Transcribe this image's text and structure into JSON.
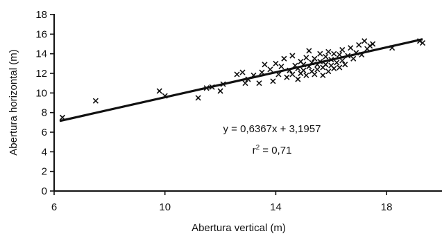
{
  "chart_data": {
    "type": "scatter",
    "title": "",
    "xlabel": "Abertura vertical (m)",
    "ylabel": "Abertura horizontal (m)",
    "xlim": [
      6,
      20
    ],
    "ylim": [
      0,
      18
    ],
    "xticks": [
      "6",
      "10",
      "14",
      "18"
    ],
    "xtick_values": [
      6,
      10,
      14,
      18
    ],
    "yticks": [
      "0",
      "2",
      "4",
      "6",
      "8",
      "10",
      "12",
      "14",
      "16",
      "18"
    ],
    "ytick_values": [
      0,
      2,
      4,
      6,
      8,
      10,
      12,
      14,
      16,
      18
    ],
    "grid": false,
    "legend": "none",
    "marker": "x",
    "trendline": {
      "slope": 0.6367,
      "intercept": 3.1957,
      "x_range": [
        6.2,
        19.3
      ]
    },
    "annotations": {
      "equation": "y = 0,6367x + 3,1957",
      "r2_prefix": "r",
      "r2_exp": "2",
      "r2_value": " = 0,71"
    },
    "points": [
      [
        6.3,
        7.5
      ],
      [
        7.5,
        9.2
      ],
      [
        9.8,
        10.2
      ],
      [
        10.0,
        9.7
      ],
      [
        11.2,
        9.5
      ],
      [
        11.5,
        10.5
      ],
      [
        11.7,
        10.6
      ],
      [
        12.0,
        10.2
      ],
      [
        12.1,
        10.9
      ],
      [
        12.6,
        11.9
      ],
      [
        12.8,
        12.1
      ],
      [
        12.9,
        11.0
      ],
      [
        13.0,
        11.4
      ],
      [
        13.2,
        11.8
      ],
      [
        13.4,
        11.0
      ],
      [
        13.5,
        12.1
      ],
      [
        13.6,
        12.9
      ],
      [
        13.8,
        12.4
      ],
      [
        13.9,
        11.2
      ],
      [
        14.0,
        13.0
      ],
      [
        14.1,
        11.9
      ],
      [
        14.2,
        12.7
      ],
      [
        14.3,
        13.5
      ],
      [
        14.4,
        11.6
      ],
      [
        14.5,
        12.3
      ],
      [
        14.6,
        13.8
      ],
      [
        14.6,
        11.9
      ],
      [
        14.7,
        12.8
      ],
      [
        14.8,
        12.5
      ],
      [
        14.8,
        11.4
      ],
      [
        14.9,
        13.2
      ],
      [
        14.9,
        12.0
      ],
      [
        15.0,
        12.9
      ],
      [
        15.0,
        12.3
      ],
      [
        15.1,
        13.6
      ],
      [
        15.1,
        11.8
      ],
      [
        15.2,
        12.7
      ],
      [
        15.2,
        14.3
      ],
      [
        15.3,
        13.1
      ],
      [
        15.3,
        12.2
      ],
      [
        15.4,
        11.9
      ],
      [
        15.4,
        13.5
      ],
      [
        15.5,
        12.9
      ],
      [
        15.5,
        12.4
      ],
      [
        15.6,
        14.0
      ],
      [
        15.6,
        13.2
      ],
      [
        15.7,
        12.6
      ],
      [
        15.7,
        11.8
      ],
      [
        15.8,
        13.7
      ],
      [
        15.8,
        12.9
      ],
      [
        15.9,
        14.2
      ],
      [
        15.9,
        12.2
      ],
      [
        16.0,
        13.4
      ],
      [
        16.0,
        12.8
      ],
      [
        16.1,
        14.0
      ],
      [
        16.1,
        12.5
      ],
      [
        16.2,
        13.1
      ],
      [
        16.3,
        13.9
      ],
      [
        16.3,
        12.6
      ],
      [
        16.4,
        14.4
      ],
      [
        16.4,
        13.3
      ],
      [
        16.5,
        12.9
      ],
      [
        16.6,
        13.8
      ],
      [
        16.7,
        14.6
      ],
      [
        16.8,
        13.5
      ],
      [
        16.9,
        14.1
      ],
      [
        17.0,
        14.9
      ],
      [
        17.1,
        13.9
      ],
      [
        17.2,
        15.3
      ],
      [
        17.3,
        14.5
      ],
      [
        17.4,
        14.8
      ],
      [
        17.5,
        15.0
      ],
      [
        18.2,
        14.6
      ],
      [
        19.2,
        15.3
      ],
      [
        19.3,
        15.1
      ]
    ]
  }
}
